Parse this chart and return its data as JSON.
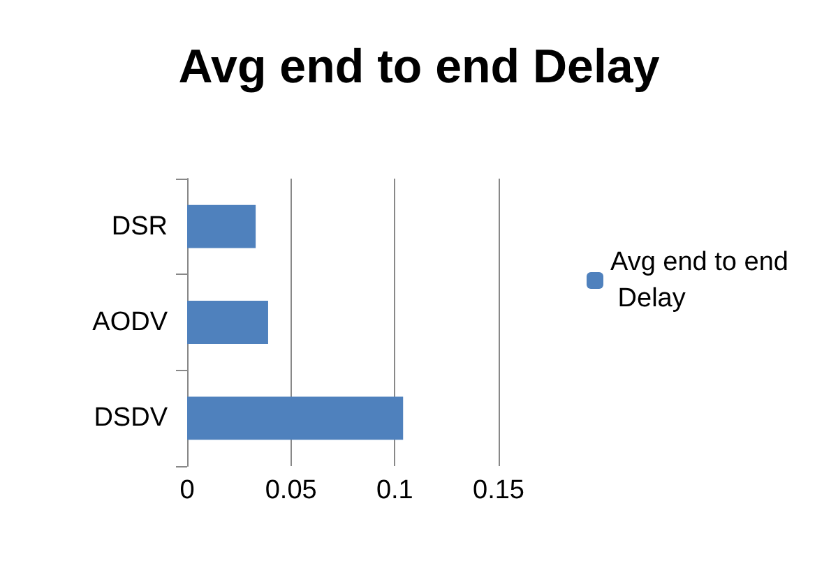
{
  "chart_data": {
    "type": "bar",
    "orientation": "horizontal",
    "title": "Avg end to end Delay",
    "categories": [
      "DSR",
      "AODV",
      "DSDV"
    ],
    "series": [
      {
        "name": "Avg end to end Delay",
        "color": "#4f81bd",
        "values": [
          0.033,
          0.039,
          0.104
        ]
      }
    ],
    "xlim": [
      0,
      0.15
    ],
    "xticks": [
      0,
      0.05,
      0.1,
      0.15
    ],
    "grid": "x",
    "legend": "right"
  }
}
